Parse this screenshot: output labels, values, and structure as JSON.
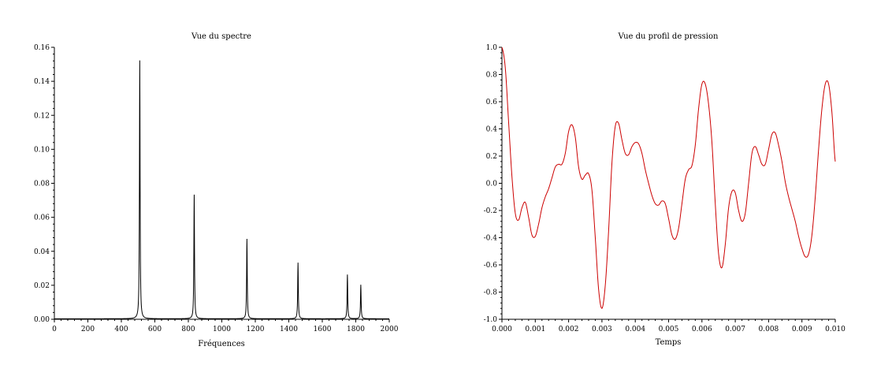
{
  "chart_data": [
    {
      "type": "line",
      "title": "Vue du spectre",
      "xlabel": "Fréquences",
      "ylabel": "",
      "xlim": [
        0,
        2000
      ],
      "ylim": [
        0,
        0.16
      ],
      "xticks": [
        "0",
        "200",
        "400",
        "600",
        "800",
        "1000",
        "1200",
        "1400",
        "1600",
        "1800",
        "2000"
      ],
      "yticks": [
        "0.00",
        "0.02",
        "0.04",
        "0.06",
        "0.08",
        "0.10",
        "0.12",
        "0.14",
        "0.16"
      ],
      "xtick_values": [
        0,
        200,
        400,
        600,
        800,
        1000,
        1200,
        1400,
        1600,
        1800,
        2000
      ],
      "ytick_values": [
        0,
        0.02,
        0.04,
        0.06,
        0.08,
        0.1,
        0.12,
        0.14,
        0.16
      ],
      "grid": false,
      "color": "#000000",
      "peaks": [
        {
          "x": 510,
          "y": 0.152
        },
        {
          "x": 835,
          "y": 0.073
        },
        {
          "x": 1150,
          "y": 0.047
        },
        {
          "x": 1455,
          "y": 0.033
        },
        {
          "x": 1750,
          "y": 0.026
        },
        {
          "x": 1830,
          "y": 0.02
        }
      ]
    },
    {
      "type": "line",
      "title": "Vue du profil de pression",
      "xlabel": "Temps",
      "ylabel": "",
      "xlim": [
        0,
        0.01
      ],
      "ylim": [
        -1.0,
        1.0
      ],
      "xticks": [
        "0.000",
        "0.001",
        "0.002",
        "0.003",
        "0.004",
        "0.005",
        "0.006",
        "0.007",
        "0.008",
        "0.009",
        "0.010"
      ],
      "yticks": [
        "-1.0",
        "-0.8",
        "-0.6",
        "-0.4",
        "-0.2",
        "0.0",
        "0.2",
        "0.4",
        "0.6",
        "0.8",
        "1.0"
      ],
      "xtick_values": [
        0,
        0.001,
        0.002,
        0.003,
        0.004,
        0.005,
        0.006,
        0.007,
        0.008,
        0.009,
        0.01
      ],
      "ytick_values": [
        -1.0,
        -0.8,
        -0.6,
        -0.4,
        -0.2,
        0,
        0.2,
        0.4,
        0.6,
        0.8,
        1.0
      ],
      "grid": false,
      "color": "#cc0000",
      "x": [
        0.0,
        0.0001,
        0.0002,
        0.0003,
        0.0004,
        0.0005,
        0.0006,
        0.0007,
        0.0008,
        0.0009,
        0.001,
        0.0011,
        0.0012,
        0.0013,
        0.0014,
        0.0015,
        0.0016,
        0.0017,
        0.0018,
        0.0019,
        0.002,
        0.0021,
        0.0022,
        0.0023,
        0.0024,
        0.0025,
        0.0026,
        0.0027,
        0.0028,
        0.0029,
        0.003,
        0.0031,
        0.0032,
        0.0033,
        0.0034,
        0.0035,
        0.0036,
        0.0037,
        0.0038,
        0.0039,
        0.004,
        0.0041,
        0.0042,
        0.0043,
        0.0044,
        0.0045,
        0.0046,
        0.0047,
        0.0048,
        0.0049,
        0.005,
        0.0051,
        0.0052,
        0.0053,
        0.0054,
        0.0055,
        0.0056,
        0.0057,
        0.0058,
        0.0059,
        0.006,
        0.0061,
        0.0062,
        0.0063,
        0.0064,
        0.0065,
        0.0066,
        0.0067,
        0.0068,
        0.0069,
        0.007,
        0.0071,
        0.0072,
        0.0073,
        0.0074,
        0.0075,
        0.0076,
        0.0077,
        0.0078,
        0.0079,
        0.008,
        0.0081,
        0.0082,
        0.0083,
        0.0084,
        0.0085,
        0.0086,
        0.0087,
        0.0088,
        0.0089,
        0.009,
        0.0091,
        0.0092,
        0.0093,
        0.0094,
        0.0095,
        0.0096,
        0.0097,
        0.0098,
        0.0099,
        0.01
      ],
      "y": [
        1.0,
        0.85,
        0.45,
        0.05,
        -0.22,
        -0.27,
        -0.18,
        -0.14,
        -0.25,
        -0.38,
        -0.39,
        -0.3,
        -0.18,
        -0.1,
        -0.04,
        0.04,
        0.12,
        0.14,
        0.14,
        0.22,
        0.38,
        0.43,
        0.34,
        0.12,
        0.03,
        0.06,
        0.07,
        -0.05,
        -0.4,
        -0.78,
        -0.92,
        -0.75,
        -0.35,
        0.15,
        0.42,
        0.44,
        0.32,
        0.22,
        0.21,
        0.27,
        0.3,
        0.29,
        0.22,
        0.1,
        0.0,
        -0.09,
        -0.15,
        -0.16,
        -0.13,
        -0.15,
        -0.26,
        -0.38,
        -0.41,
        -0.33,
        -0.15,
        0.03,
        0.1,
        0.13,
        0.28,
        0.55,
        0.73,
        0.73,
        0.58,
        0.3,
        -0.15,
        -0.52,
        -0.62,
        -0.45,
        -0.18,
        -0.06,
        -0.07,
        -0.2,
        -0.28,
        -0.22,
        0.0,
        0.22,
        0.27,
        0.21,
        0.14,
        0.14,
        0.25,
        0.36,
        0.37,
        0.28,
        0.16,
        0.01,
        -0.1,
        -0.19,
        -0.28,
        -0.39,
        -0.48,
        -0.54,
        -0.52,
        -0.38,
        -0.1,
        0.25,
        0.55,
        0.73,
        0.73,
        0.52,
        0.16
      ]
    }
  ]
}
